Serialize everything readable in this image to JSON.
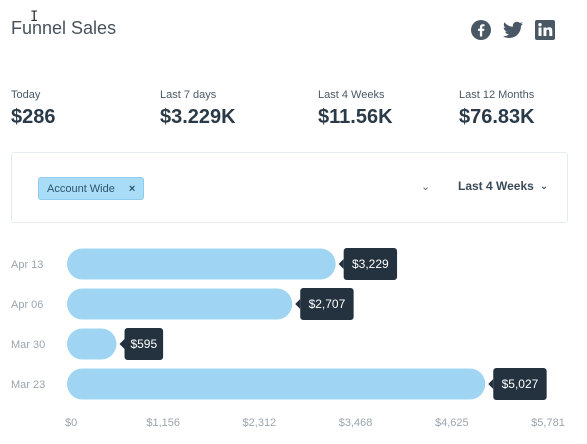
{
  "header": {
    "title": "Funnel Sales",
    "social": [
      {
        "name": "facebook",
        "icon": "facebook-icon"
      },
      {
        "name": "twitter",
        "icon": "twitter-icon"
      },
      {
        "name": "linkedin",
        "icon": "linkedin-icon"
      }
    ]
  },
  "stats": [
    {
      "label": "Today",
      "value": "$286"
    },
    {
      "label": "Last 7 days",
      "value": "$3.229K"
    },
    {
      "label": "Last 4 Weeks",
      "value": "$11.56K"
    },
    {
      "label": "Last 12 Months",
      "value": "$76.83K"
    }
  ],
  "filter": {
    "chip_label": "Account Wide",
    "chip_remove": "×",
    "dropdown_arrow": "⌄",
    "period_label": "Last 4 Weeks",
    "period_chevron": "⌄"
  },
  "colors": {
    "bar": "#9fd4f2",
    "tooltip": "#24323f",
    "accent": "#4a5866"
  },
  "chart_data": {
    "type": "bar",
    "orientation": "horizontal",
    "categories": [
      "Apr 13",
      "Apr 06",
      "Mar 30",
      "Mar 23"
    ],
    "values": [
      3229,
      2707,
      595,
      5027
    ],
    "value_labels": [
      "$3,229",
      "$2,707",
      "$595",
      "$5,027"
    ],
    "xticks": [
      0,
      1156,
      2312,
      3468,
      4625,
      5781
    ],
    "xtick_labels": [
      "$0",
      "$1,156",
      "$2,312",
      "$3,468",
      "$4,625",
      "$5,781"
    ],
    "xlim": [
      0,
      5781
    ],
    "grid": false
  }
}
